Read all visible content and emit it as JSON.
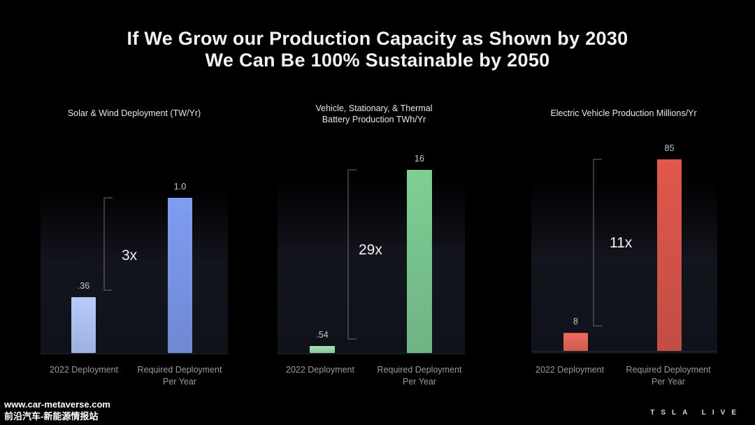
{
  "title": {
    "line1": "If We Grow our Production Capacity as Shown by 2030",
    "line2": "We Can Be 100% Sustainable by 2050"
  },
  "chart_data": [
    {
      "type": "bar",
      "title_lines": [
        "Solar & Wind Deployment (TW/Yr)"
      ],
      "categories": [
        "2022 Deployment",
        "Required Deployment Per Year"
      ],
      "category_lines": [
        [
          "2022 Deployment"
        ],
        [
          "Required Deployment",
          "Per Year"
        ]
      ],
      "values": [
        0.36,
        1.0
      ],
      "value_labels": [
        ".36",
        "1.0"
      ],
      "multiplier": "3x",
      "colors": [
        "#b7ccff",
        "#7f9df2"
      ]
    },
    {
      "type": "bar",
      "title_lines": [
        "Vehicle, Stationary, & Thermal",
        "Battery Production TWh/Yr"
      ],
      "categories": [
        "2022 Deployment",
        "Required Deployment Per Year"
      ],
      "category_lines": [
        [
          "2022 Deployment"
        ],
        [
          "Required Deployment",
          "Per Year"
        ]
      ],
      "values": [
        0.54,
        16
      ],
      "value_labels": [
        ".54",
        "16"
      ],
      "multiplier": "29x",
      "colors": [
        "#a3e3b4",
        "#7fcf95"
      ]
    },
    {
      "type": "bar",
      "title_lines": [
        "Electric Vehicle Production Millions/Yr"
      ],
      "categories": [
        "2022 Deployment",
        "Required Deployment Per Year"
      ],
      "category_lines": [
        [
          "2022 Deployment"
        ],
        [
          "Required Deployment",
          "Per Year"
        ]
      ],
      "values": [
        8,
        85
      ],
      "value_labels": [
        "8",
        "85"
      ],
      "multiplier": "11x",
      "colors": [
        "#ef6a5a",
        "#e0584b"
      ]
    }
  ],
  "footer": {
    "site": "www.car-metaverse.com",
    "site_cn": "前沿汽车-新能源情报站",
    "brand": "TSLA LIVE"
  }
}
